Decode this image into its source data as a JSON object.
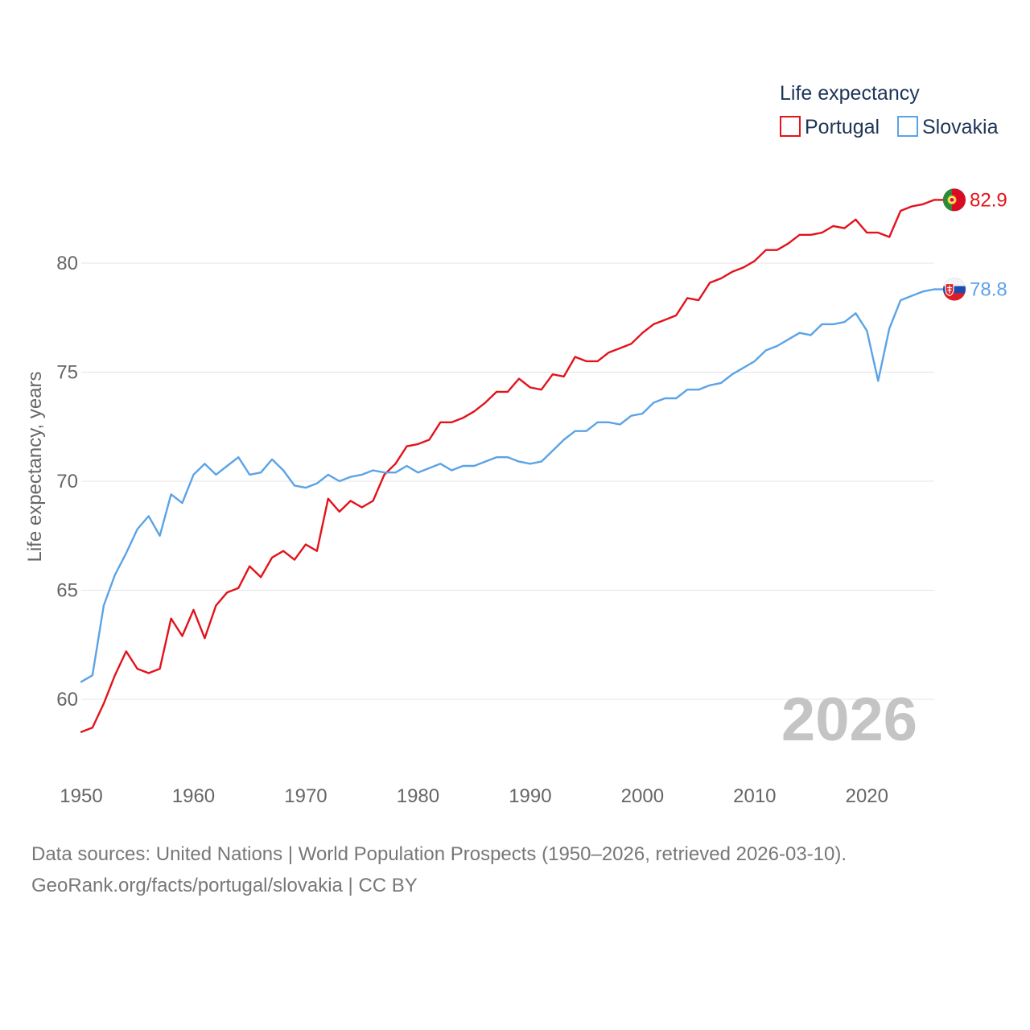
{
  "chart_data": {
    "type": "line",
    "legend_title": "Life expectancy",
    "ylabel": "Life expectancy, years",
    "xlabel": "",
    "xlim": [
      1950,
      2026
    ],
    "ylim": [
      57,
      84
    ],
    "y_ticks": [
      60,
      65,
      70,
      75,
      80
    ],
    "x_ticks": [
      1950,
      1960,
      1970,
      1980,
      1990,
      2000,
      2010,
      2020
    ],
    "year_label": "2026",
    "legend_position": "top-right",
    "grid": true,
    "series": [
      {
        "name": "Portugal",
        "color": "#e3121b",
        "end_label": "82.9",
        "flag": "portugal-flag",
        "x": [
          1950,
          1951,
          1952,
          1953,
          1954,
          1955,
          1956,
          1957,
          1958,
          1959,
          1960,
          1961,
          1962,
          1963,
          1964,
          1965,
          1966,
          1967,
          1968,
          1969,
          1970,
          1971,
          1972,
          1973,
          1974,
          1975,
          1976,
          1977,
          1978,
          1979,
          1980,
          1981,
          1982,
          1983,
          1984,
          1985,
          1986,
          1987,
          1988,
          1989,
          1990,
          1991,
          1992,
          1993,
          1994,
          1995,
          1996,
          1997,
          1998,
          1999,
          2000,
          2001,
          2002,
          2003,
          2004,
          2005,
          2006,
          2007,
          2008,
          2009,
          2010,
          2011,
          2012,
          2013,
          2014,
          2015,
          2016,
          2017,
          2018,
          2019,
          2020,
          2021,
          2022,
          2023,
          2024,
          2025,
          2026
        ],
        "values": [
          58.5,
          58.7,
          59.8,
          61.1,
          62.2,
          61.4,
          61.2,
          61.4,
          63.7,
          62.9,
          64.1,
          62.8,
          64.3,
          64.9,
          65.1,
          66.1,
          65.6,
          66.5,
          66.8,
          66.4,
          67.1,
          66.8,
          69.2,
          68.6,
          69.1,
          68.8,
          69.1,
          70.3,
          70.8,
          71.6,
          71.7,
          71.9,
          72.7,
          72.7,
          72.9,
          73.2,
          73.6,
          74.1,
          74.1,
          74.7,
          74.3,
          74.2,
          74.9,
          74.8,
          75.7,
          75.5,
          75.5,
          75.9,
          76.1,
          76.3,
          76.8,
          77.2,
          77.4,
          77.6,
          78.4,
          78.3,
          79.1,
          79.3,
          79.6,
          79.8,
          80.1,
          80.6,
          80.6,
          80.9,
          81.3,
          81.3,
          81.4,
          81.7,
          81.6,
          82.0,
          81.4,
          81.4,
          81.2,
          82.4,
          82.6,
          82.7,
          82.9
        ]
      },
      {
        "name": "Slovakia",
        "color": "#5ba3e6",
        "end_label": "78.8",
        "flag": "slovakia-flag",
        "x": [
          1950,
          1951,
          1952,
          1953,
          1954,
          1955,
          1956,
          1957,
          1958,
          1959,
          1960,
          1961,
          1962,
          1963,
          1964,
          1965,
          1966,
          1967,
          1968,
          1969,
          1970,
          1971,
          1972,
          1973,
          1974,
          1975,
          1976,
          1977,
          1978,
          1979,
          1980,
          1981,
          1982,
          1983,
          1984,
          1985,
          1986,
          1987,
          1988,
          1989,
          1990,
          1991,
          1992,
          1993,
          1994,
          1995,
          1996,
          1997,
          1998,
          1999,
          2000,
          2001,
          2002,
          2003,
          2004,
          2005,
          2006,
          2007,
          2008,
          2009,
          2010,
          2011,
          2012,
          2013,
          2014,
          2015,
          2016,
          2017,
          2018,
          2019,
          2020,
          2021,
          2022,
          2023,
          2024,
          2025,
          2026
        ],
        "values": [
          60.8,
          61.1,
          64.3,
          65.7,
          66.7,
          67.8,
          68.4,
          67.5,
          69.4,
          69.0,
          70.3,
          70.8,
          70.3,
          70.7,
          71.1,
          70.3,
          70.4,
          71.0,
          70.5,
          69.8,
          69.7,
          69.9,
          70.3,
          70.0,
          70.2,
          70.3,
          70.5,
          70.4,
          70.4,
          70.7,
          70.4,
          70.6,
          70.8,
          70.5,
          70.7,
          70.7,
          70.9,
          71.1,
          71.1,
          70.9,
          70.8,
          70.9,
          71.4,
          71.9,
          72.3,
          72.3,
          72.7,
          72.7,
          72.6,
          73.0,
          73.1,
          73.6,
          73.8,
          73.8,
          74.2,
          74.2,
          74.4,
          74.5,
          74.9,
          75.2,
          75.5,
          76.0,
          76.2,
          76.5,
          76.8,
          76.7,
          77.2,
          77.2,
          77.3,
          77.7,
          76.9,
          74.6,
          77.0,
          78.3,
          78.5,
          78.7,
          78.8
        ]
      }
    ]
  },
  "source": {
    "line1": "Data sources: United Nations | World Population Prospects (1950–2026, retrieved 2026-03-10).",
    "line2": "GeoRank.org/facts/portugal/slovakia | CC BY"
  }
}
